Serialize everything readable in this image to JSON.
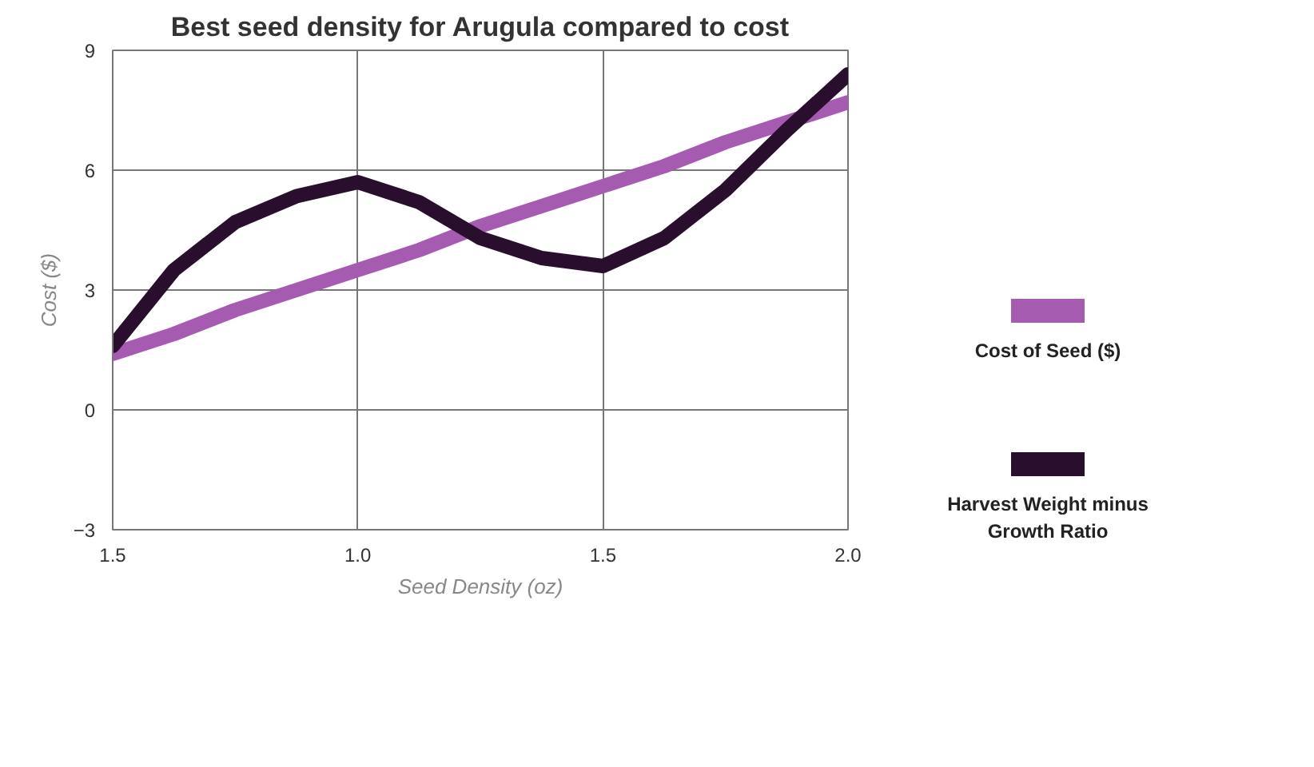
{
  "chart_data": {
    "type": "line",
    "title": "Best seed density for Arugula compared to cost",
    "xlabel": "Seed Density (oz)",
    "ylabel": "Cost ($)",
    "categories": [
      "1.5",
      null,
      null,
      null,
      "1.0",
      null,
      null,
      null,
      "1.5",
      null,
      null,
      null,
      "2.0"
    ],
    "series": [
      {
        "name": "Cost of Seed ($)",
        "color": "#a55bb0",
        "values": [
          1.4,
          1.9,
          2.5,
          3.0,
          3.5,
          4.0,
          4.6,
          5.1,
          5.6,
          6.1,
          6.7,
          7.2,
          7.7
        ]
      },
      {
        "name": "Harvest Weight minus Growth Ratio",
        "color": "#2a0e2e",
        "values": [
          1.6,
          3.5,
          4.7,
          5.35,
          5.7,
          5.2,
          4.3,
          3.8,
          3.6,
          4.3,
          5.5,
          7.0,
          8.4
        ]
      }
    ],
    "ylim": [
      -3,
      9
    ],
    "yticks": [
      -3,
      0,
      3,
      6,
      9
    ],
    "grid": true,
    "legend": "right",
    "marker": "none",
    "line_style": "solid"
  }
}
